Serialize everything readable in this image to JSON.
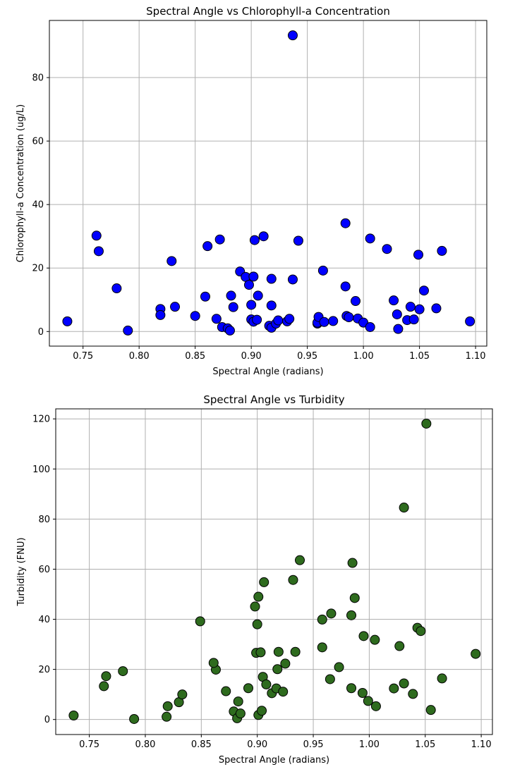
{
  "chart_data": [
    {
      "type": "scatter",
      "title": "Spectral Angle vs Chlorophyll-a Concentration",
      "xlabel": "Spectral Angle (radians)",
      "ylabel": "Chlorophyll-a Concentration (ug/L)",
      "xlim": [
        0.72,
        1.11
      ],
      "ylim": [
        -4.6,
        98
      ],
      "xticks": [
        0.75,
        0.8,
        0.85,
        0.9,
        0.95,
        1.0,
        1.05,
        1.1
      ],
      "xtick_labels": [
        "0.75",
        "0.80",
        "0.85",
        "0.90",
        "0.95",
        "1.00",
        "1.05",
        "1.10"
      ],
      "yticks": [
        0,
        20,
        40,
        60,
        80
      ],
      "ytick_labels": [
        "0",
        "20",
        "40",
        "60",
        "80"
      ],
      "grid": true,
      "marker_color": "#0000ff",
      "marker_edge": "#000000",
      "x": [
        0.736,
        0.762,
        0.764,
        0.78,
        0.79,
        0.819,
        0.819,
        0.829,
        0.832,
        0.85,
        0.859,
        0.861,
        0.869,
        0.872,
        0.874,
        0.879,
        0.881,
        0.882,
        0.884,
        0.89,
        0.895,
        0.898,
        0.9,
        0.9,
        0.902,
        0.902,
        0.903,
        0.905,
        0.906,
        0.911,
        0.916,
        0.918,
        0.918,
        0.918,
        0.922,
        0.924,
        0.932,
        0.934,
        0.937,
        0.937,
        0.942,
        0.959,
        0.959,
        0.96,
        0.964,
        0.965,
        0.973,
        0.984,
        0.984,
        0.985,
        0.987,
        0.993,
        0.995,
        1.0,
        1.006,
        1.006,
        1.021,
        1.027,
        1.03,
        1.031,
        1.039,
        1.042,
        1.045,
        1.049,
        1.05,
        1.054,
        1.065,
        1.07,
        1.095
      ],
      "y": [
        3.2,
        30.2,
        25.3,
        13.6,
        0.3,
        7.1,
        5.2,
        22.2,
        7.8,
        4.9,
        11.0,
        26.9,
        4.0,
        29.0,
        1.4,
        1.0,
        0.3,
        11.3,
        7.7,
        18.9,
        17.2,
        14.7,
        8.4,
        3.8,
        17.3,
        3.1,
        28.8,
        3.7,
        11.3,
        30.0,
        1.8,
        8.2,
        16.6,
        1.2,
        2.5,
        3.5,
        3.2,
        4.0,
        93.3,
        16.4,
        28.6,
        2.5,
        2.8,
        4.6,
        19.2,
        3.0,
        3.3,
        34.1,
        14.2,
        4.9,
        4.5,
        9.6,
        4.1,
        2.8,
        29.3,
        1.4,
        26.0,
        9.8,
        5.4,
        0.8,
        3.6,
        7.8,
        3.8,
        24.2,
        7.0,
        12.9,
        7.3,
        25.4,
        3.2
      ]
    },
    {
      "type": "scatter",
      "title": "Spectral Angle vs Turbidity",
      "xlabel": "Spectral Angle (radians)",
      "ylabel": "Turbidity (FNU)",
      "xlim": [
        0.72,
        1.11
      ],
      "ylim": [
        -6,
        124
      ],
      "xticks": [
        0.75,
        0.8,
        0.85,
        0.9,
        0.95,
        1.0,
        1.05,
        1.1
      ],
      "xtick_labels": [
        "0.75",
        "0.80",
        "0.85",
        "0.90",
        "0.95",
        "1.00",
        "1.05",
        "1.10"
      ],
      "yticks": [
        0,
        20,
        40,
        60,
        80,
        100,
        120
      ],
      "ytick_labels": [
        "0",
        "20",
        "40",
        "60",
        "80",
        "100",
        "120"
      ],
      "grid": true,
      "marker_color": "#2e6b1e",
      "marker_edge": "#000000",
      "x": [
        0.736,
        0.763,
        0.765,
        0.78,
        0.79,
        0.819,
        0.82,
        0.83,
        0.833,
        0.849,
        0.863,
        0.861,
        0.872,
        0.879,
        0.882,
        0.883,
        0.885,
        0.892,
        0.898,
        0.899,
        0.9,
        0.901,
        0.901,
        0.903,
        0.904,
        0.905,
        0.906,
        0.908,
        0.913,
        0.917,
        0.918,
        0.919,
        0.923,
        0.925,
        0.932,
        0.934,
        0.938,
        0.958,
        0.958,
        0.965,
        0.966,
        0.973,
        0.984,
        0.984,
        0.985,
        0.987,
        0.994,
        0.995,
        0.999,
        1.005,
        1.006,
        1.022,
        1.027,
        1.031,
        1.031,
        1.039,
        1.043,
        1.046,
        1.051,
        1.055,
        1.065,
        1.095
      ],
      "y": [
        1.6,
        13.3,
        17.3,
        19.3,
        0.2,
        1.1,
        5.3,
        6.9,
        10.0,
        39.2,
        19.9,
        22.6,
        11.3,
        3.2,
        0.5,
        7.2,
        2.4,
        12.5,
        45.1,
        26.6,
        38.0,
        49.0,
        1.8,
        26.8,
        3.5,
        17.0,
        54.8,
        14.0,
        10.5,
        12.4,
        20.1,
        27.0,
        11.1,
        22.3,
        55.7,
        27.0,
        63.6,
        28.8,
        39.9,
        16.1,
        42.3,
        20.9,
        12.5,
        41.6,
        62.5,
        48.5,
        10.6,
        33.3,
        7.4,
        31.8,
        5.3,
        12.4,
        29.3,
        84.6,
        14.4,
        10.2,
        36.6,
        35.3,
        118.1,
        3.8,
        16.4,
        26.2
      ]
    }
  ]
}
